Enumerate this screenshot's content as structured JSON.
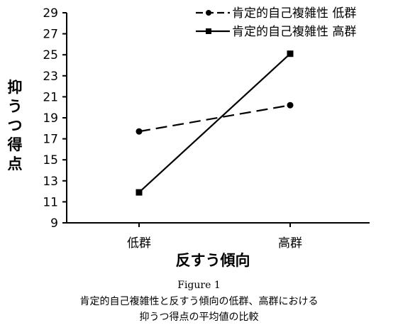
{
  "chart_data": {
    "type": "line",
    "categories": [
      "低群",
      "高群"
    ],
    "series": [
      {
        "name": "肯定的自己複雑性  低群",
        "values": [
          17.7,
          20.2
        ],
        "dash": "dashed",
        "marker": "circle",
        "color": "#000000"
      },
      {
        "name": "肯定的自己複雑性  高群",
        "values": [
          11.9,
          25.1
        ],
        "dash": "solid",
        "marker": "square",
        "color": "#000000"
      }
    ],
    "ylim": [
      9,
      29
    ],
    "yticks": [
      9,
      11,
      13,
      15,
      17,
      19,
      21,
      23,
      25,
      27,
      29
    ],
    "xlabel": "反すう傾向",
    "ylabel": "抑うつ得点",
    "legend_position": "top-right",
    "grid": false
  },
  "caption": {
    "figure": "Figure 1",
    "line1": "肯定的自己複雑性と反すう傾向の低群、高群における",
    "line2": "抑うつ得点の平均値の比較"
  }
}
